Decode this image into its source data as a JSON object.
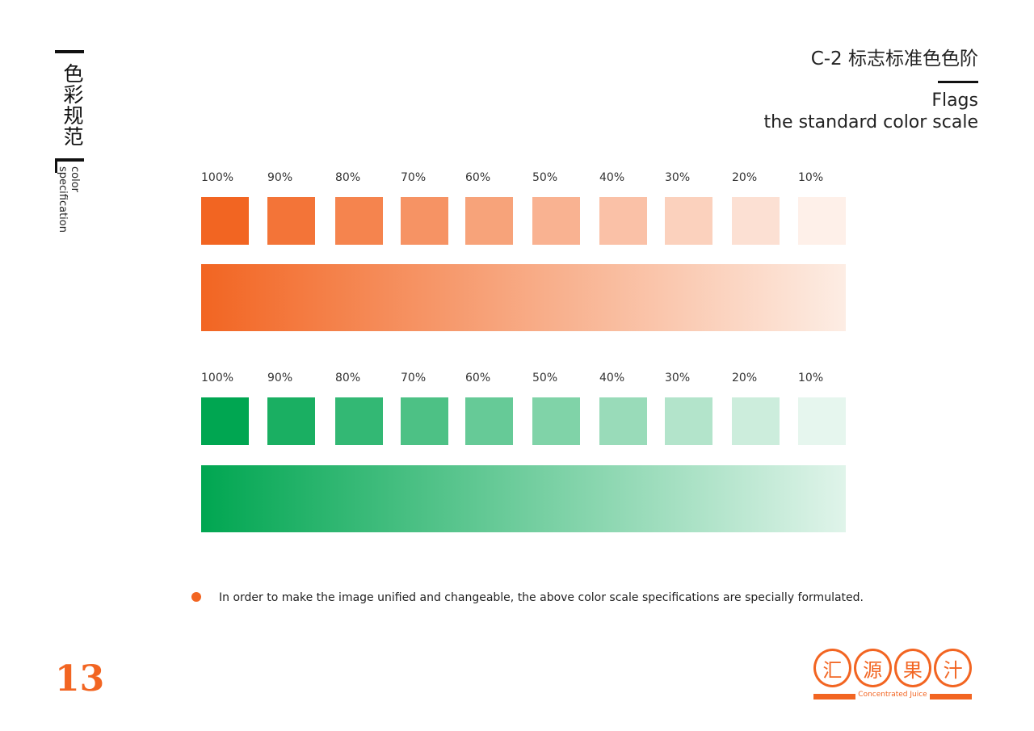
{
  "side": {
    "title": "色彩规范",
    "subtitle_line1": "color",
    "subtitle_line2": "specification"
  },
  "header": {
    "title": "C-2 标志标准色色阶",
    "en_line1": "Flags",
    "en_line2": "the standard color scale"
  },
  "scales": [
    {
      "name": "orange",
      "base_color": "#f26522",
      "labels": [
        "100%",
        "90%",
        "80%",
        "70%",
        "60%",
        "50%",
        "40%",
        "30%",
        "20%",
        "10%"
      ],
      "tints": [
        1.0,
        0.9,
        0.8,
        0.7,
        0.6,
        0.5,
        0.4,
        0.3,
        0.2,
        0.1
      ]
    },
    {
      "name": "green",
      "base_color": "#00a651",
      "labels": [
        "100%",
        "90%",
        "80%",
        "70%",
        "60%",
        "50%",
        "40%",
        "30%",
        "20%",
        "10%"
      ],
      "tints": [
        1.0,
        0.9,
        0.8,
        0.7,
        0.6,
        0.5,
        0.4,
        0.3,
        0.2,
        0.1
      ]
    }
  ],
  "note": {
    "text": "In order to make the image unified and changeable, the above color scale specifications are specially formulated."
  },
  "page_number": "13",
  "logo": {
    "chars": [
      "汇",
      "源",
      "果",
      "汁"
    ],
    "caption": "Concentrated Juice"
  },
  "colors": {
    "accent": "#f26522",
    "green": "#00a651"
  }
}
